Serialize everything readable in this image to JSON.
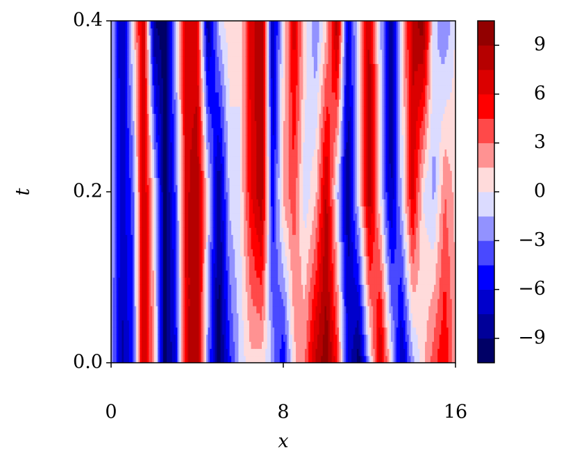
{
  "chart_data": {
    "type": "contourf",
    "xlabel": "x",
    "ylabel": "t",
    "x": [
      0,
      0.5,
      1,
      1.5,
      2,
      2.5,
      3,
      3.5,
      4,
      4.5,
      5,
      5.5,
      6,
      6.5,
      7,
      7.5,
      8,
      8.5,
      9,
      9.5,
      10,
      10.5,
      11,
      11.5,
      12,
      12.5,
      13,
      13.5,
      14,
      14.5,
      15,
      15.5,
      16
    ],
    "y": [
      0,
      0.2,
      0.4
    ],
    "z": [
      [
        -2,
        -8,
        -5,
        8,
        2,
        -10,
        -6,
        7,
        9,
        -3,
        -10,
        -5,
        -1,
        1,
        1,
        -2,
        -6,
        1,
        3,
        8,
        10,
        5,
        -6,
        -10,
        -1,
        8,
        0,
        -8,
        -2,
        1,
        4,
        6,
        2
      ],
      [
        -1,
        -7,
        -4,
        8,
        0,
        -10,
        -4,
        7,
        9,
        0,
        -9,
        -1,
        0,
        6,
        9,
        -6,
        2,
        4,
        -1,
        1,
        8,
        -1,
        -9,
        0,
        9,
        0,
        -8,
        -1,
        7,
        0,
        -2,
        3,
        1
      ],
      [
        -1,
        -8,
        0,
        8,
        -9,
        -10,
        -1,
        7,
        6,
        -9,
        -1,
        1,
        0,
        7,
        9,
        -8,
        0,
        7,
        1,
        -3,
        1,
        9,
        -7,
        0,
        8,
        -1,
        -9,
        0,
        8,
        10,
        -1,
        -3,
        0
      ]
    ],
    "levels": [
      -10.5,
      -9,
      -7.5,
      -6,
      -4.5,
      -3,
      -1.5,
      0,
      1.5,
      3,
      4.5,
      6,
      7.5,
      9,
      10.5
    ],
    "colors": [
      "#000066",
      "#000099",
      "#0000cc",
      "#0000ff",
      "#4949ff",
      "#9292ff",
      "#dbdbff",
      "#ffdbdb",
      "#ff9292",
      "#ff4949",
      "#ff0000",
      "#db0000",
      "#b60000",
      "#920000"
    ],
    "xlim": [
      0,
      16
    ],
    "xticks": [
      0,
      8,
      16
    ],
    "ylim": [
      0,
      0.4
    ],
    "yticks": [
      {
        "value": 0,
        "label": "0.0"
      },
      0.2,
      0.4
    ],
    "cticks": [
      {
        "value": -9,
        "label": "−9"
      },
      {
        "value": -6,
        "label": "−6"
      },
      {
        "value": -3,
        "label": "−3"
      },
      0,
      3,
      6,
      9
    ]
  }
}
